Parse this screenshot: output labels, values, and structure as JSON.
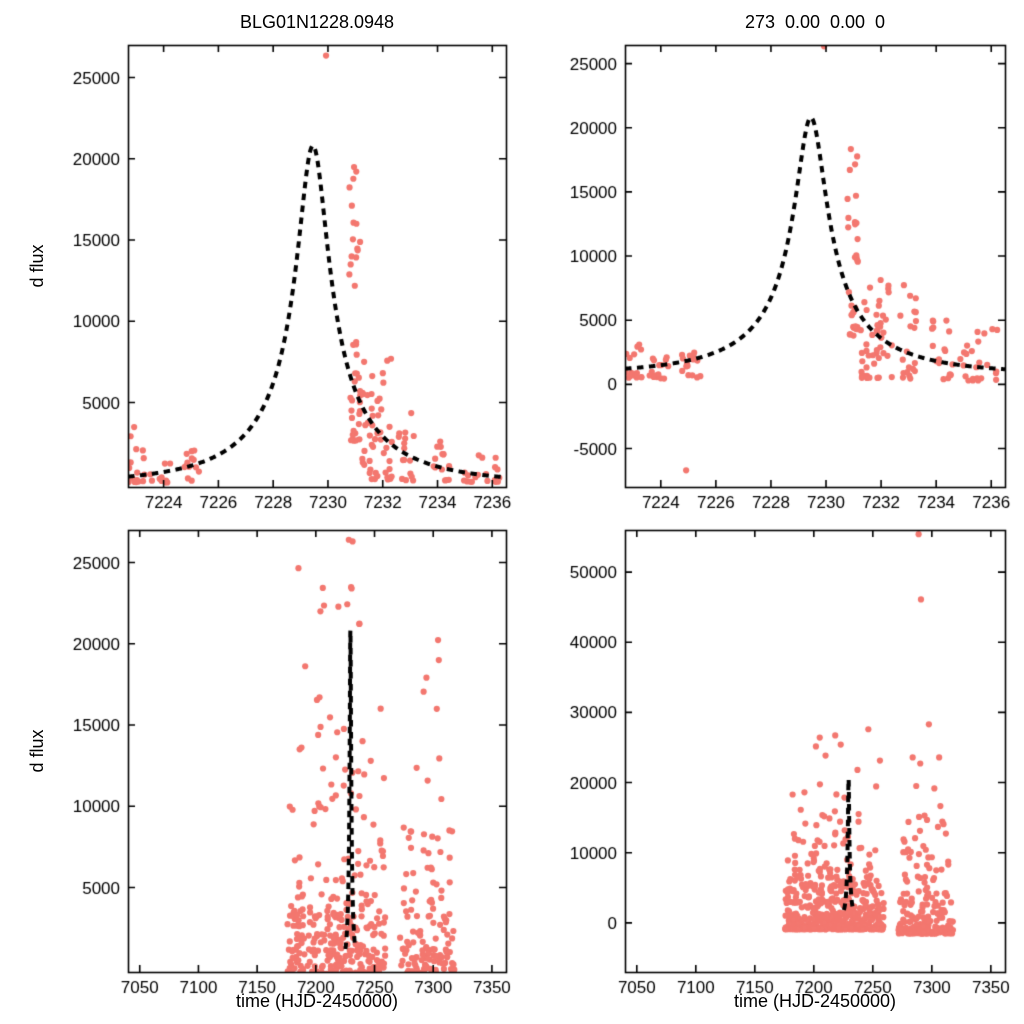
{
  "figure": {
    "background": "#ffffff",
    "point_color": "#f3776f",
    "model_color": "#000000",
    "axis_color": "#000000"
  },
  "chart_data": [
    {
      "id": "top-left",
      "type": "scatter",
      "title": "BLG01N1228.0948",
      "xlabel": "",
      "ylabel": "d flux",
      "xlim": [
        7222.7,
        7236.5
      ],
      "ylim": [
        -200,
        27000
      ],
      "xticks": [
        7224,
        7226,
        7228,
        7230,
        7232,
        7234,
        7236
      ],
      "yticks": [
        5000,
        10000,
        15000,
        20000,
        25000
      ],
      "grid": false,
      "legend": "none",
      "model": {
        "type": "paczynski",
        "t0": 7229.45,
        "tE": 4.8,
        "u0": 0.12,
        "fs": 2820,
        "fb": 0,
        "peak": 20810,
        "range": [
          7222.7,
          7236.5
        ]
      },
      "outliers": [
        [
          7229.93,
          26350
        ]
      ],
      "clusters": [
        {
          "x0": 7222.7,
          "x1": 7223.3,
          "n": 14,
          "y0": 100,
          "y1": 2200,
          "p": 2.5
        },
        {
          "x0": 7222.72,
          "x1": 7222.95,
          "n": 2,
          "y0": 2800,
          "y1": 3500,
          "p": 1
        },
        {
          "x0": 7223.5,
          "x1": 7224.3,
          "n": 12,
          "y0": 80,
          "y1": 1300,
          "p": 2
        },
        {
          "x0": 7224.75,
          "x1": 7225.35,
          "n": 13,
          "y0": 150,
          "y1": 2100,
          "p": 2
        },
        {
          "x0": 7230.78,
          "x1": 7231.18,
          "n": 42,
          "y0": 2400,
          "y1": 20500,
          "p": 1.6
        },
        {
          "x0": 7231.25,
          "x1": 7232.35,
          "n": 48,
          "y0": 250,
          "y1": 7700,
          "p": 2
        },
        {
          "x0": 7232.55,
          "x1": 7233.15,
          "n": 16,
          "y0": 200,
          "y1": 5600,
          "p": 2.2
        },
        {
          "x0": 7233.85,
          "x1": 7234.45,
          "n": 15,
          "y0": 200,
          "y1": 5400,
          "p": 2.2
        },
        {
          "x0": 7234.95,
          "x1": 7236.3,
          "n": 20,
          "y0": 100,
          "y1": 1900,
          "p": 2
        }
      ]
    },
    {
      "id": "top-right",
      "type": "scatter",
      "title": "273  0.00  0.00  0",
      "xlabel": "",
      "ylabel": "",
      "xlim": [
        7222.7,
        7236.5
      ],
      "ylim": [
        -8000,
        26450
      ],
      "xticks": [
        7224,
        7226,
        7228,
        7230,
        7232,
        7234,
        7236
      ],
      "yticks": [
        -5000,
        0,
        5000,
        10000,
        15000,
        20000,
        25000
      ],
      "grid": false,
      "legend": "none",
      "model": {
        "type": "paczynski",
        "t0": 7229.45,
        "tE": 4.8,
        "u0": 0.12,
        "fs": 2710,
        "fb": 800,
        "peak": 20800,
        "range": [
          7222.7,
          7236.5
        ]
      },
      "outliers": [
        [
          7229.93,
          26350
        ],
        [
          7224.92,
          -6700
        ]
      ],
      "clusters": [
        {
          "x0": 7222.7,
          "x1": 7223.3,
          "n": 16,
          "y0": 500,
          "y1": 3600,
          "p": 2.2
        },
        {
          "x0": 7223.5,
          "x1": 7224.35,
          "n": 15,
          "y0": 450,
          "y1": 2700,
          "p": 2
        },
        {
          "x0": 7224.75,
          "x1": 7225.45,
          "n": 15,
          "y0": 450,
          "y1": 2700,
          "p": 2
        },
        {
          "x0": 7230.78,
          "x1": 7231.18,
          "n": 34,
          "y0": 3400,
          "y1": 21000,
          "p": 1.5
        },
        {
          "x0": 7231.25,
          "x1": 7232.4,
          "n": 48,
          "y0": 500,
          "y1": 8300,
          "p": 2
        },
        {
          "x0": 7232.55,
          "x1": 7233.3,
          "n": 20,
          "y0": 450,
          "y1": 7800,
          "p": 2.2
        },
        {
          "x0": 7233.85,
          "x1": 7234.6,
          "n": 18,
          "y0": 400,
          "y1": 5100,
          "p": 2
        },
        {
          "x0": 7234.85,
          "x1": 7236.3,
          "n": 24,
          "y0": 300,
          "y1": 4900,
          "p": 2.2
        }
      ]
    },
    {
      "id": "bottom-left",
      "type": "scatter",
      "title": "",
      "xlabel": "time (HJD-2450000)",
      "ylabel": "d flux",
      "xlim": [
        7040,
        7362
      ],
      "ylim": [
        -200,
        27000
      ],
      "xticks": [
        7050,
        7100,
        7150,
        7200,
        7250,
        7300,
        7350
      ],
      "yticks": [
        5000,
        10000,
        15000,
        20000,
        25000
      ],
      "grid": false,
      "legend": "none",
      "model": {
        "type": "paczynski",
        "t0": 7229.45,
        "tE": 4.8,
        "u0": 0.12,
        "fs": 2820,
        "fb": 0,
        "peak": 20810,
        "range": [
          7225.2,
          7233.5
        ]
      },
      "outliers": [
        [
          7228.1,
          26400
        ],
        [
          7231.3,
          26300
        ],
        [
          7185.2,
          24650
        ],
        [
          7230.5,
          23400
        ]
      ],
      "clusters": [
        {
          "x0": 7176,
          "x1": 7259,
          "n": 430,
          "y0": -800,
          "y1": 3200,
          "p": 3,
          "qx": 1,
          "jx": 0.25
        },
        {
          "x0": 7178,
          "x1": 7258,
          "n": 95,
          "y0": 3200,
          "y1": 12500,
          "p": 2,
          "qx": 1,
          "jx": 0.25
        },
        {
          "x0": 7182,
          "x1": 7256,
          "n": 22,
          "y0": 12500,
          "y1": 25000,
          "p": 1.4,
          "qx": 1,
          "jx": 0.25
        },
        {
          "x0": 7272,
          "x1": 7318,
          "n": 150,
          "y0": -600,
          "y1": 3200,
          "p": 3,
          "qx": 1,
          "jx": 0.25
        },
        {
          "x0": 7274,
          "x1": 7316,
          "n": 40,
          "y0": 3200,
          "y1": 9000,
          "p": 2,
          "qx": 1,
          "jx": 0.25
        },
        {
          "x0": 7283,
          "x1": 7312,
          "n": 9,
          "y0": 9000,
          "y1": 21000,
          "p": 1.3,
          "qx": 1,
          "jx": 0.25
        }
      ]
    },
    {
      "id": "bottom-right",
      "type": "scatter",
      "title": "",
      "xlabel": "time (HJD-2450000)",
      "ylabel": "",
      "xlim": [
        7040,
        7362
      ],
      "ylim": [
        -7000,
        56000
      ],
      "xticks": [
        7050,
        7100,
        7150,
        7200,
        7250,
        7300,
        7350
      ],
      "yticks": [
        0,
        10000,
        20000,
        30000,
        40000,
        50000
      ],
      "grid": false,
      "legend": "none",
      "model": {
        "type": "paczynski",
        "t0": 7229.45,
        "tE": 4.8,
        "u0": 0.12,
        "fs": 2710,
        "fb": 500,
        "peak": 20500,
        "range": [
          7225.5,
          7233
        ]
      },
      "outliers": [
        [
          7288.8,
          55400
        ],
        [
          7290.8,
          46100
        ],
        [
          7297.5,
          28300
        ],
        [
          7246.2,
          27600
        ]
      ],
      "clusters": [
        {
          "x0": 7176,
          "x1": 7259,
          "n": 430,
          "y0": -900,
          "y1": 5200,
          "p": 3,
          "qx": 1,
          "jx": 0.25
        },
        {
          "x0": 7178,
          "x1": 7258,
          "n": 100,
          "y0": 5200,
          "y1": 15500,
          "p": 2.1,
          "qx": 1,
          "jx": 0.25
        },
        {
          "x0": 7182,
          "x1": 7256,
          "n": 16,
          "y0": 15500,
          "y1": 27500,
          "p": 1.4,
          "qx": 1,
          "jx": 0.25
        },
        {
          "x0": 7272,
          "x1": 7318,
          "n": 160,
          "y0": -1500,
          "y1": 4200,
          "p": 3,
          "qx": 1,
          "jx": 0.25
        },
        {
          "x0": 7276,
          "x1": 7314,
          "n": 42,
          "y0": 4200,
          "y1": 15000,
          "p": 2,
          "qx": 1,
          "jx": 0.25
        },
        {
          "x0": 7284,
          "x1": 7310,
          "n": 8,
          "y0": 15000,
          "y1": 24000,
          "p": 1.3,
          "qx": 1,
          "jx": 0.25
        }
      ]
    }
  ]
}
